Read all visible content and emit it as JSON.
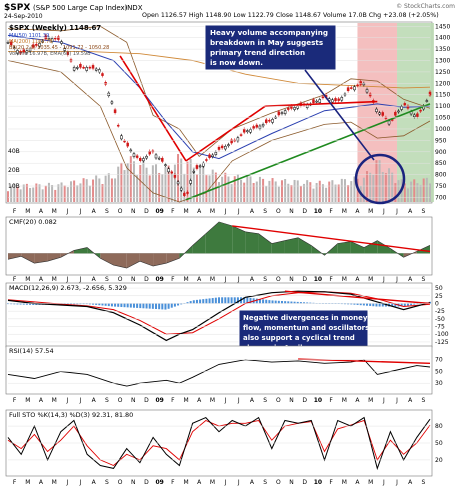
{
  "header": {
    "symbol": "$SPX",
    "name": "(S&P 500 Large Cap Index)",
    "exchange": "INDX",
    "date": "24-Sep-2010",
    "ohlc": "Open 1126.57  High 1148.90  Low 1122.79  Close 1148.67  Volume 17.0B  Chg +23.08 (+2.05%)",
    "brand": "© StockCharts.com"
  },
  "annotations": {
    "top_note": [
      "Heavy volume accompanying",
      "breakdown in May suggests",
      "primary trend direction",
      "is now down."
    ],
    "mid_note": [
      "Negative divergences in money",
      "flow, momentum and oscillators",
      "also support a cyclical trend",
      "change in April."
    ]
  },
  "x_axis": {
    "months": [
      "F",
      "M",
      "A",
      "M",
      "J",
      "J",
      "A",
      "S",
      "O",
      "N",
      "D",
      "09",
      "F",
      "M",
      "A",
      "M",
      "J",
      "J",
      "A",
      "S",
      "O",
      "N",
      "D",
      "10",
      "F",
      "M",
      "A",
      "M",
      "J",
      "J",
      "A",
      "S"
    ],
    "bold": [
      "09",
      "10"
    ]
  },
  "chart_data": [
    {
      "type": "line",
      "title": "$SPX (Weekly) 1148.67",
      "legend": [
        "MA(50) 1101.39",
        "MA(200) 1183.78",
        "BB(20,2.0) 1035.45 - 1091.72 - 1050.28",
        "Volume 16.97B, EMA(60) 19.59B"
      ],
      "y_ticks": [
        1450,
        1400,
        1350,
        1300,
        1250,
        1200,
        1150,
        1100,
        1050,
        1000,
        950,
        900,
        850,
        800,
        750,
        700
      ],
      "volume_ticks": [
        "40B",
        "20B",
        "10B"
      ],
      "ylim": [
        680,
        1460
      ],
      "x_range": [
        0,
        32
      ],
      "series": [
        {
          "name": "close",
          "x": [
            0,
            1,
            2,
            3,
            4,
            5,
            6,
            7,
            8,
            8.5,
            9,
            10,
            11,
            11.5,
            12,
            13,
            13.5,
            14,
            15,
            16,
            17,
            18,
            19,
            20,
            21,
            22,
            23,
            24,
            25,
            26,
            27,
            28,
            29,
            30,
            31,
            32
          ],
          "values": [
            1380,
            1330,
            1360,
            1400,
            1390,
            1270,
            1270,
            1260,
            1100,
            980,
            930,
            860,
            900,
            870,
            840,
            760,
            690,
            810,
            860,
            910,
            940,
            990,
            1010,
            1040,
            1080,
            1100,
            1110,
            1140,
            1120,
            1180,
            1200,
            1080,
            1030,
            1110,
            1050,
            1148
          ]
        },
        {
          "name": "MA(50)",
          "x": [
            0,
            4,
            8,
            10,
            12,
            14,
            16,
            20,
            24,
            28,
            30,
            32
          ],
          "values": [
            1410,
            1380,
            1300,
            1180,
            1030,
            900,
            870,
            980,
            1080,
            1110,
            1095,
            1100
          ]
        },
        {
          "name": "MA(200)",
          "x": [
            0,
            6,
            10,
            14,
            18,
            22,
            26,
            30,
            32
          ],
          "values": [
            1340,
            1340,
            1330,
            1300,
            1240,
            1200,
            1190,
            1180,
            1183
          ]
        },
        {
          "name": "BB upper",
          "x": [
            0,
            4,
            7,
            9,
            11,
            13,
            14.5,
            17,
            20,
            24,
            26,
            28,
            30,
            32
          ],
          "values": [
            1440,
            1430,
            1450,
            1380,
            1060,
            1000,
            880,
            1000,
            1070,
            1150,
            1220,
            1210,
            1130,
            1091
          ]
        },
        {
          "name": "BB lower",
          "x": [
            0,
            4,
            7,
            9,
            11,
            13,
            15,
            17,
            20,
            24,
            26,
            28,
            30,
            32
          ],
          "values": [
            1300,
            1250,
            1100,
            830,
            720,
            680,
            720,
            860,
            950,
            1020,
            1030,
            960,
            970,
            1035
          ]
        },
        {
          "name": "Volume",
          "x": [
            0,
            4,
            8,
            9,
            10,
            12,
            13,
            14,
            16,
            20,
            24,
            27,
            28,
            30,
            32
          ],
          "values": [
            12,
            13,
            20,
            32,
            28,
            24,
            33,
            28,
            20,
            16,
            14,
            18,
            30,
            14,
            17
          ]
        }
      ],
      "trendlines": [
        {
          "x": [
            8.5,
            13.5
          ],
          "values": [
            1320,
            860
          ]
        },
        {
          "x": [
            13.5,
            19.5
          ],
          "values": [
            860,
            1100
          ]
        },
        {
          "x": [
            19.5,
            28
          ],
          "values": [
            1100,
            1120
          ]
        },
        {
          "x": [
            13.5,
            32
          ],
          "values": [
            690,
            1110
          ]
        }
      ],
      "shading": [
        {
          "from": 26.5,
          "to": 29.5,
          "color": "#f2b4b4"
        },
        {
          "from": 29.5,
          "to": 32.3,
          "color": "#b9d8b0"
        }
      ]
    },
    {
      "type": "area",
      "title": "CMF(20) 0.082",
      "x": [
        0,
        1,
        2,
        3,
        4,
        5,
        6,
        7,
        8,
        9,
        10,
        11,
        12,
        13,
        14,
        15,
        16,
        17,
        18,
        19,
        20,
        21,
        22,
        23,
        24,
        25,
        26,
        27,
        28,
        29,
        30,
        31,
        32
      ],
      "values": [
        -0.06,
        -0.03,
        -0.1,
        -0.08,
        -0.04,
        0.03,
        0.06,
        -0.05,
        -0.12,
        -0.15,
        -0.08,
        -0.13,
        -0.1,
        -0.05,
        0.08,
        0.2,
        0.32,
        0.28,
        0.22,
        0.2,
        0.1,
        0.13,
        0.16,
        0.08,
        -0.02,
        0.1,
        0.12,
        0.06,
        0.13,
        0.05,
        -0.04,
        0.02,
        0.082
      ],
      "divergence": {
        "x": [
          17,
          32
        ],
        "values": [
          0.28,
          0.02
        ]
      }
    },
    {
      "type": "line",
      "title": "MACD(12,26,9) 2.673, -2.656, 5.329",
      "y_ticks": [
        50,
        25,
        0,
        -25,
        -50,
        -75,
        -100,
        -125
      ],
      "ylim": [
        -135,
        60
      ],
      "series": [
        {
          "name": "MACD",
          "x": [
            0,
            2,
            4,
            6,
            8,
            10,
            12,
            13,
            14,
            16,
            18,
            20,
            22,
            24,
            26,
            28,
            30,
            32
          ],
          "values": [
            10,
            0,
            -5,
            -10,
            -30,
            -70,
            -120,
            -100,
            -85,
            -30,
            20,
            35,
            40,
            38,
            30,
            5,
            -20,
            2.673
          ]
        },
        {
          "name": "Signal",
          "x": [
            0,
            2,
            4,
            6,
            8,
            10,
            12,
            14,
            16,
            18,
            20,
            22,
            24,
            26,
            28,
            30,
            32
          ],
          "values": [
            12,
            5,
            -2,
            -8,
            -20,
            -55,
            -100,
            -95,
            -50,
            0,
            25,
            35,
            38,
            33,
            15,
            -10,
            -2.656
          ]
        },
        {
          "name": "Histogram",
          "x": [
            0,
            2,
            4,
            6,
            8,
            10,
            12,
            14,
            16,
            18,
            20,
            22,
            24,
            26,
            28,
            30,
            32
          ],
          "values": [
            -2,
            -5,
            -3,
            -2,
            -10,
            -15,
            -20,
            10,
            20,
            20,
            10,
            5,
            0,
            -3,
            -10,
            -10,
            5.329
          ]
        }
      ],
      "divergence": {
        "x": [
          21,
          32
        ],
        "values": [
          40,
          0
        ]
      }
    },
    {
      "type": "line",
      "title": "RSI(14) 57.54",
      "y_ticks": [
        70,
        50,
        30
      ],
      "ylim": [
        15,
        90
      ],
      "series": [
        {
          "name": "RSI",
          "x": [
            0,
            2,
            4,
            6,
            8,
            9,
            10,
            12,
            13,
            14,
            16,
            18,
            20,
            22,
            24,
            26,
            27,
            28,
            29,
            30,
            31,
            32
          ],
          "values": [
            45,
            38,
            50,
            45,
            30,
            25,
            30,
            35,
            30,
            40,
            62,
            70,
            66,
            68,
            64,
            66,
            70,
            45,
            50,
            55,
            60,
            57.54
          ]
        }
      ],
      "divergence": {
        "x": [
          22,
          32
        ],
        "values": [
          71,
          64
        ]
      }
    },
    {
      "type": "line",
      "title": "Full STO %K(14,3) %D(3) 92.31, 81.80",
      "y_ticks": [
        80,
        50,
        20
      ],
      "ylim": [
        -5,
        105
      ],
      "series": [
        {
          "name": "%K",
          "x": [
            0,
            1,
            2,
            3,
            4,
            5,
            6,
            7,
            8,
            9,
            10,
            11,
            12,
            13,
            14,
            15,
            16,
            17,
            18,
            19,
            20,
            21,
            22,
            23,
            24,
            25,
            26,
            27,
            28,
            29,
            30,
            31,
            32
          ],
          "values": [
            60,
            30,
            80,
            20,
            70,
            90,
            30,
            10,
            5,
            40,
            15,
            60,
            30,
            10,
            85,
            95,
            70,
            90,
            80,
            95,
            40,
            90,
            85,
            90,
            20,
            90,
            80,
            95,
            5,
            70,
            20,
            60,
            92.31
          ]
        },
        {
          "name": "%D",
          "x": [
            0,
            1,
            2,
            3,
            4,
            5,
            6,
            7,
            8,
            9,
            10,
            11,
            12,
            13,
            14,
            15,
            16,
            17,
            18,
            19,
            20,
            21,
            22,
            23,
            24,
            25,
            26,
            27,
            28,
            29,
            30,
            31,
            32
          ],
          "values": [
            55,
            40,
            65,
            35,
            55,
            80,
            45,
            20,
            10,
            30,
            20,
            45,
            40,
            20,
            70,
            90,
            80,
            85,
            85,
            90,
            55,
            80,
            85,
            88,
            35,
            75,
            82,
            90,
            20,
            55,
            30,
            50,
            81.8
          ]
        }
      ]
    }
  ]
}
